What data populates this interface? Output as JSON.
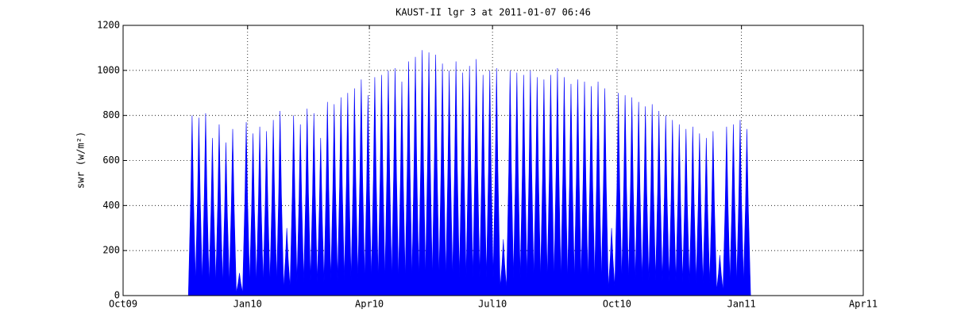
{
  "chart_data": {
    "type": "spike",
    "title": "KAUST-II lgr 3 at 2011-01-07 06:46",
    "y_label": "swr (w/m²)",
    "x": [
      734098,
      734103,
      734108,
      734113,
      734118,
      734123,
      734128,
      734133,
      734138,
      734143,
      734148,
      734153,
      734158,
      734163,
      734168,
      734173,
      734178,
      734183,
      734188,
      734193,
      734198,
      734203,
      734208,
      734213,
      734218,
      734223,
      734228,
      734233,
      734238,
      734243,
      734248,
      734253,
      734258,
      734263,
      734268,
      734273,
      734278,
      734283,
      734288,
      734293,
      734298,
      734303,
      734308,
      734313,
      734318,
      734323,
      734328,
      734333,
      734338,
      734343,
      734348,
      734353,
      734358,
      734363,
      734368,
      734373,
      734378,
      734383,
      734388,
      734393,
      734398,
      734403,
      734408,
      734413,
      734418,
      734423,
      734428,
      734433,
      734438,
      734443,
      734448,
      734453,
      734458,
      734463,
      734468,
      734473,
      734478,
      734483,
      734488,
      734493,
      734498,
      734503,
      734508
    ],
    "values": [
      800,
      790,
      810,
      700,
      760,
      680,
      740,
      100,
      770,
      720,
      750,
      730,
      780,
      820,
      300,
      800,
      760,
      830,
      810,
      700,
      860,
      850,
      880,
      900,
      920,
      960,
      890,
      970,
      980,
      1000,
      1010,
      950,
      1040,
      1060,
      1090,
      1080,
      1070,
      1030,
      1000,
      1040,
      990,
      1020,
      1050,
      980,
      1000,
      1010,
      250,
      1000,
      990,
      980,
      1000,
      970,
      960,
      980,
      1010,
      970,
      940,
      960,
      950,
      930,
      950,
      920,
      300,
      900,
      890,
      880,
      860,
      840,
      850,
      820,
      800,
      780,
      760,
      740,
      750,
      720,
      700,
      730,
      180,
      750,
      760,
      780,
      740
    ],
    "color": "#0000ff",
    "xlim": [
      734047,
      734594
    ],
    "xticks": [
      {
        "value": 734047,
        "label": "Oct09"
      },
      {
        "value": 734139,
        "label": "Jan10"
      },
      {
        "value": 734229,
        "label": "Apr10"
      },
      {
        "value": 734320,
        "label": "Jul10"
      },
      {
        "value": 734412,
        "label": "Oct10"
      },
      {
        "value": 734504,
        "label": "Jan11"
      },
      {
        "value": 734594,
        "label": "Apr11"
      }
    ],
    "ylim": [
      0,
      1200
    ],
    "yticks": [
      0,
      200,
      400,
      600,
      800,
      1000,
      1200
    ],
    "grid": true
  }
}
